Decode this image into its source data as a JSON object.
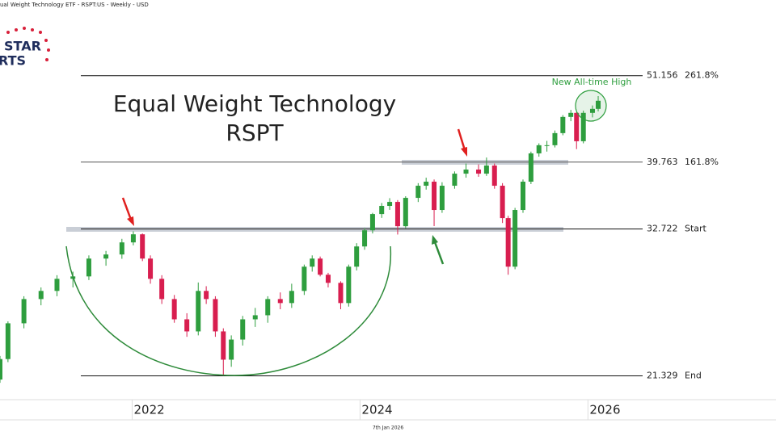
{
  "chart_data": {
    "type": "candlestick",
    "header": "ual Weight Technology ETF - RSPT:US - Weekly - USD",
    "logo": [
      "STAR",
      "RTS"
    ],
    "title": "Equal Weight Technology",
    "subtitle": "RSPT",
    "annotation": "New All-time High",
    "footer": "7th Jan 2026",
    "log_scale": true,
    "xlim": [
      2020.84,
      2026.48
    ],
    "xticks": [
      2022,
      2024,
      2026
    ],
    "ylim": [
      19.9,
      62
    ],
    "up_color": "#2e9e3e",
    "down_color": "#d81e4f",
    "levels": [
      {
        "value": 51.156,
        "label": "261.8%"
      },
      {
        "value": 39.763,
        "label": "161.8%"
      },
      {
        "value": 32.722,
        "label": "Start"
      },
      {
        "value": 21.329,
        "label": "End"
      }
    ],
    "x": [
      2020.84,
      2020.91,
      2021.05,
      2021.2,
      2021.34,
      2021.48,
      2021.62,
      2021.77,
      2021.91,
      2022.01,
      2022.09,
      2022.16,
      2022.26,
      2022.37,
      2022.48,
      2022.58,
      2022.65,
      2022.73,
      2022.8,
      2022.87,
      2022.97,
      2023.08,
      2023.19,
      2023.3,
      2023.4,
      2023.51,
      2023.58,
      2023.65,
      2023.72,
      2023.83,
      2023.9,
      2023.97,
      2024.04,
      2024.11,
      2024.19,
      2024.26,
      2024.33,
      2024.4,
      2024.51,
      2024.58,
      2024.65,
      2024.72,
      2024.83,
      2024.93,
      2025.04,
      2025.11,
      2025.18,
      2025.25,
      2025.3,
      2025.36,
      2025.43,
      2025.5,
      2025.57,
      2025.64,
      2025.71,
      2025.78,
      2025.85,
      2025.9,
      2025.96,
      2026.04,
      2026.09
    ],
    "open": [
      21.1,
      22.4,
      24.86,
      26.68,
      27.32,
      28.3,
      28.5,
      30.02,
      30.38,
      31.47,
      32.22,
      30.02,
      28.3,
      26.68,
      25.15,
      24.28,
      27.32,
      26.68,
      24.28,
      22.36,
      23.71,
      25.15,
      25.45,
      26.68,
      26.37,
      27.32,
      29.32,
      30.02,
      28.64,
      27.97,
      26.37,
      29.32,
      31.1,
      32.6,
      34.18,
      35.0,
      35.41,
      32.99,
      35.83,
      37.12,
      37.56,
      34.59,
      37.12,
      38.45,
      38.91,
      38.45,
      39.37,
      37.12,
      33.78,
      29.32,
      34.59,
      37.56,
      40.79,
      41.77,
      41.77,
      43.27,
      45.36,
      45.9,
      42.26,
      45.9,
      46.44
    ],
    "high": [
      22.6,
      25.0,
      26.9,
      27.6,
      28.6,
      28.9,
      30.3,
      30.7,
      31.8,
      32.5,
      32.3,
      30.3,
      28.6,
      27.0,
      25.6,
      28.0,
      27.7,
      26.9,
      24.5,
      24.0,
      25.4,
      26.0,
      26.9,
      27.2,
      27.9,
      29.5,
      30.3,
      30.2,
      28.8,
      28.1,
      29.5,
      31.4,
      32.8,
      34.3,
      35.3,
      35.8,
      35.6,
      36.0,
      37.4,
      38.0,
      37.8,
      37.5,
      38.7,
      39.6,
      39.5,
      40.3,
      39.6,
      37.4,
      34.0,
      34.8,
      37.8,
      41.0,
      42.0,
      42.3,
      43.6,
      45.6,
      46.3,
      46.0,
      46.2,
      46.9,
      48.2
    ],
    "low": [
      20.9,
      22.2,
      24.5,
      26.2,
      26.9,
      27.6,
      28.2,
      29.4,
      30.0,
      31.2,
      29.8,
      27.9,
      26.3,
      24.9,
      23.9,
      24.0,
      26.3,
      23.9,
      21.33,
      21.9,
      23.3,
      24.6,
      24.9,
      25.9,
      26.0,
      27.0,
      28.9,
      28.5,
      27.6,
      25.9,
      26.1,
      29.0,
      30.8,
      32.3,
      33.8,
      34.6,
      32.2,
      32.8,
      35.4,
      36.7,
      33.0,
      34.3,
      36.8,
      38.0,
      38.1,
      38.2,
      36.8,
      33.3,
      28.64,
      29.1,
      34.3,
      37.3,
      40.4,
      41.0,
      41.5,
      43.0,
      44.8,
      41.3,
      42.0,
      45.3,
      46.1
    ],
    "close": [
      22.4,
      24.86,
      26.68,
      27.32,
      28.3,
      28.5,
      30.02,
      30.38,
      31.47,
      32.22,
      30.02,
      28.3,
      26.68,
      25.15,
      24.28,
      27.32,
      26.68,
      24.28,
      22.36,
      23.71,
      25.15,
      25.45,
      26.68,
      26.37,
      27.32,
      29.32,
      30.02,
      28.64,
      27.97,
      26.37,
      29.32,
      31.1,
      32.6,
      34.18,
      35.0,
      35.41,
      32.99,
      35.83,
      37.12,
      37.56,
      34.59,
      37.12,
      38.45,
      38.91,
      38.45,
      39.37,
      37.12,
      33.78,
      29.32,
      34.59,
      37.56,
      40.79,
      41.77,
      41.77,
      43.27,
      45.36,
      45.9,
      42.26,
      45.9,
      46.44,
      47.55
    ]
  }
}
